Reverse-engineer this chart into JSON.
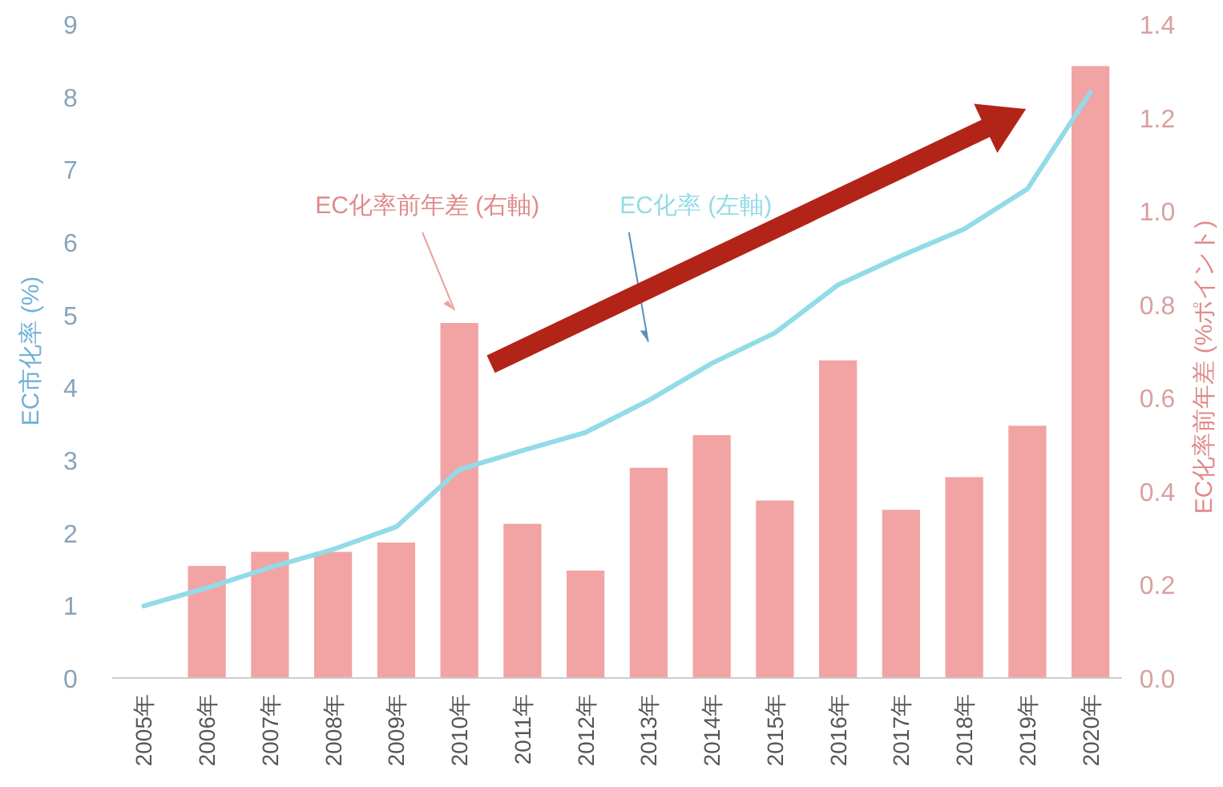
{
  "chart_data": {
    "type": "bar",
    "categories": [
      "2005年",
      "2006年",
      "2007年",
      "2008年",
      "2009年",
      "2010年",
      "2011年",
      "2012年",
      "2013年",
      "2014年",
      "2015年",
      "2016年",
      "2017年",
      "2018年",
      "2019年",
      "2020年"
    ],
    "series": [
      {
        "name": "EC化率前年差 (右軸)",
        "axis": "y2",
        "color": "#f2a3a3",
        "values": [
          null,
          0.24,
          0.27,
          0.27,
          0.29,
          0.76,
          0.33,
          0.23,
          0.45,
          0.52,
          0.38,
          0.68,
          0.36,
          0.43,
          0.54,
          1.31
        ]
      },
      {
        "name": "EC化率 (左軸)",
        "type": "line",
        "color": "#92dbe8",
        "values": [
          0.99,
          1.24,
          1.52,
          1.77,
          2.08,
          2.87,
          3.13,
          3.38,
          3.82,
          4.33,
          4.75,
          5.41,
          5.81,
          6.18,
          6.73,
          8.06
        ]
      }
    ],
    "ylabel": "EC市化率 (%)",
    "y2label": "EC化率前年差 (%ポイント)",
    "ylim": [
      0,
      9
    ],
    "yticks": [
      0,
      1,
      2,
      3,
      4,
      5,
      6,
      7,
      8,
      9
    ],
    "y2lim": [
      0,
      1.4
    ],
    "y2ticks": [
      {
        "value": 0,
        "label": "0.0"
      },
      {
        "value": 0.2,
        "label": "0.2"
      },
      {
        "value": 0.4,
        "label": "0.4"
      },
      {
        "value": 0.6,
        "label": "0.6"
      },
      {
        "value": 0.8,
        "label": "0.8"
      },
      {
        "value": 1,
        "label": "1.0"
      },
      {
        "value": 1.2,
        "label": "1.2"
      },
      {
        "value": 1.4,
        "label": "1.4"
      }
    ],
    "grid": false,
    "marker": "none",
    "line_style": "solid"
  }
}
